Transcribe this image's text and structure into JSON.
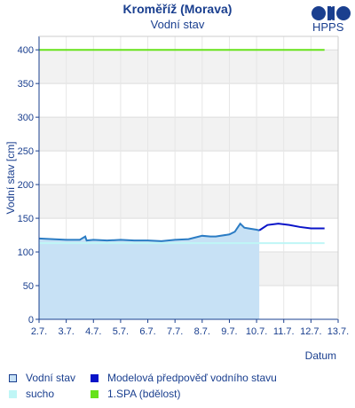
{
  "header": {
    "title": "Kroměříž (Morava)",
    "subtitle": "Vodní stav",
    "logo_text": "HPPS"
  },
  "legend": {
    "items": [
      {
        "label": "Vodní stav",
        "color": "#c7e1f5",
        "border": "#1a3f8f"
      },
      {
        "label": "Modelová předpověď vodního stavu",
        "color": "#0a14c8",
        "border": "#0a14c8"
      },
      {
        "label": "sucho",
        "color": "#bff6f6",
        "border": "#bff6f6"
      },
      {
        "label": "1.SPA (bdělost)",
        "color": "#66e21a",
        "border": "#66e21a"
      }
    ]
  },
  "chart_data": {
    "type": "line",
    "title": "Vodní stav",
    "xlabel": "Datum",
    "ylabel": "Vodní stav [cm]",
    "ylim": [
      0,
      420
    ],
    "yticks": [
      0,
      50,
      100,
      150,
      200,
      250,
      300,
      350,
      400
    ],
    "xlim": [
      0,
      11
    ],
    "xticks": [
      "2.7.",
      "3.7.",
      "4.7.",
      "5.7.",
      "6.7.",
      "7.7.",
      "8.7.",
      "9.7.",
      "10.7.",
      "11.7.",
      "12.7.",
      "13.7."
    ],
    "grid": true,
    "series": [
      {
        "name": "Vodní stav",
        "color": "#2b7cc4",
        "fill": "#c7e1f5",
        "points": [
          [
            0,
            120
          ],
          [
            0.5,
            119
          ],
          [
            1,
            118
          ],
          [
            1.5,
            118
          ],
          [
            1.7,
            123
          ],
          [
            1.75,
            117
          ],
          [
            2,
            118
          ],
          [
            2.5,
            117
          ],
          [
            3,
            118
          ],
          [
            3.5,
            117
          ],
          [
            4,
            117
          ],
          [
            4.5,
            116
          ],
          [
            5,
            118
          ],
          [
            5.5,
            119
          ],
          [
            6,
            124
          ],
          [
            6.3,
            123
          ],
          [
            6.5,
            123
          ],
          [
            7,
            126
          ],
          [
            7.2,
            130
          ],
          [
            7.4,
            142
          ],
          [
            7.55,
            136
          ],
          [
            7.7,
            135
          ],
          [
            8,
            133
          ],
          [
            8.1,
            132
          ]
        ]
      },
      {
        "name": "Modelová předpověď vodního stavu",
        "color": "#0a14c8",
        "points": [
          [
            8.1,
            132
          ],
          [
            8.4,
            140
          ],
          [
            8.8,
            142
          ],
          [
            9.2,
            140
          ],
          [
            9.6,
            137
          ],
          [
            10,
            135
          ],
          [
            10.5,
            135
          ]
        ]
      },
      {
        "name": "sucho",
        "color": "#bff6f6",
        "points": [
          [
            0,
            113
          ],
          [
            10.5,
            113
          ]
        ]
      },
      {
        "name": "1.SPA (bdělost)",
        "color": "#66e21a",
        "points": [
          [
            0,
            400
          ],
          [
            10.5,
            400
          ]
        ]
      }
    ]
  }
}
